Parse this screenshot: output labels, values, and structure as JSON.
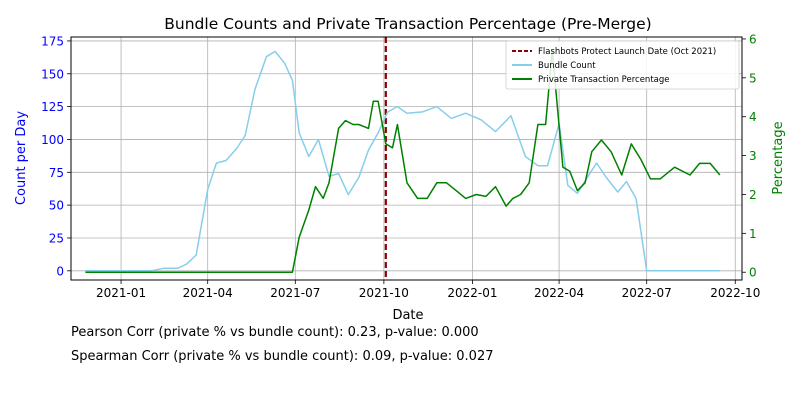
{
  "chart_data": {
    "type": "line",
    "title": "Bundle Counts and Private Transaction Percentage (Pre-Merge)",
    "xlabel": "Date",
    "ylabel_left": "Count per Day",
    "ylabel_right": "Percentage",
    "x_ticks": [
      "2021-01",
      "2021-04",
      "2021-07",
      "2021-10",
      "2022-01",
      "2022-04",
      "2022-07",
      "2022-10"
    ],
    "xlim": [
      "2020-11-10",
      "2022-10-08"
    ],
    "ylim_left": [
      -7,
      178
    ],
    "yticks_left": [
      0,
      25,
      50,
      75,
      100,
      125,
      150,
      175
    ],
    "ylim_right": [
      -0.2,
      6.05
    ],
    "yticks_right": [
      0,
      1,
      2,
      3,
      4,
      5,
      6
    ],
    "grid": true,
    "legend_position": "top-right",
    "vline": {
      "date": "2021-10-03",
      "label": "Flashbots Protect Launch Date (Oct 2021)",
      "color": "#8b0000"
    },
    "series": [
      {
        "name": "Bundle Count",
        "axis": "left",
        "color": "#87ceeb",
        "x": [
          "2020-11-25",
          "2021-02-01",
          "2021-02-15",
          "2021-03-01",
          "2021-03-10",
          "2021-03-20",
          "2021-04-01",
          "2021-04-10",
          "2021-04-20",
          "2021-05-01",
          "2021-05-10",
          "2021-05-20",
          "2021-06-01",
          "2021-06-10",
          "2021-06-20",
          "2021-06-28",
          "2021-07-05",
          "2021-07-15",
          "2021-07-25",
          "2021-08-05",
          "2021-08-15",
          "2021-08-25",
          "2021-09-05",
          "2021-09-15",
          "2021-09-25",
          "2021-10-05",
          "2021-10-15",
          "2021-10-25",
          "2021-11-10",
          "2021-11-25",
          "2021-12-10",
          "2021-12-25",
          "2022-01-10",
          "2022-01-25",
          "2022-02-10",
          "2022-02-25",
          "2022-03-10",
          "2022-03-20",
          "2022-04-01",
          "2022-04-10",
          "2022-04-20",
          "2022-05-01",
          "2022-05-10",
          "2022-05-20",
          "2022-06-01",
          "2022-06-10",
          "2022-06-20",
          "2022-07-01",
          "2022-07-15",
          "2022-08-15",
          "2022-09-15"
        ],
        "values": [
          0,
          0,
          2,
          2,
          5,
          12,
          62,
          82,
          84,
          93,
          103,
          138,
          163,
          167,
          158,
          145,
          105,
          87,
          100,
          72,
          74,
          58,
          71,
          92,
          105,
          121,
          125,
          120,
          121,
          125,
          116,
          120,
          115,
          106,
          118,
          87,
          80,
          80,
          112,
          65,
          59,
          72,
          82,
          71,
          60,
          68,
          55,
          0,
          0,
          0,
          0
        ]
      },
      {
        "name": "Private Transaction Percentage",
        "axis": "right",
        "color": "#008000",
        "x": [
          "2020-11-25",
          "2021-06-28",
          "2021-07-05",
          "2021-07-15",
          "2021-07-22",
          "2021-07-30",
          "2021-08-05",
          "2021-08-15",
          "2021-08-22",
          "2021-08-30",
          "2021-09-05",
          "2021-09-15",
          "2021-09-20",
          "2021-09-25",
          "2021-10-03",
          "2021-10-10",
          "2021-10-15",
          "2021-10-25",
          "2021-11-05",
          "2021-11-15",
          "2021-11-25",
          "2021-12-05",
          "2021-12-15",
          "2021-12-25",
          "2022-01-05",
          "2022-01-15",
          "2022-01-25",
          "2022-02-05",
          "2022-02-12",
          "2022-02-20",
          "2022-03-01",
          "2022-03-10",
          "2022-03-18",
          "2022-03-25",
          "2022-03-30",
          "2022-04-05",
          "2022-04-12",
          "2022-04-20",
          "2022-04-28",
          "2022-05-05",
          "2022-05-15",
          "2022-05-25",
          "2022-06-05",
          "2022-06-15",
          "2022-06-25",
          "2022-07-05",
          "2022-07-15",
          "2022-07-30",
          "2022-08-15",
          "2022-08-25",
          "2022-09-05",
          "2022-09-15"
        ],
        "values": [
          0,
          0,
          0.9,
          1.6,
          2.2,
          1.9,
          2.3,
          3.7,
          3.9,
          3.8,
          3.8,
          3.7,
          4.4,
          4.4,
          3.3,
          3.2,
          3.8,
          2.3,
          1.9,
          1.9,
          2.3,
          2.3,
          2.1,
          1.9,
          2.0,
          1.95,
          2.2,
          1.7,
          1.9,
          2.0,
          2.3,
          3.8,
          3.8,
          5.7,
          4.3,
          2.7,
          2.6,
          2.1,
          2.3,
          3.1,
          3.4,
          3.1,
          2.5,
          3.3,
          2.9,
          2.4,
          2.4,
          2.7,
          2.5,
          2.8,
          2.8,
          2.5
        ]
      }
    ]
  },
  "stats": {
    "pearson": "Pearson Corr (private % vs bundle count): 0.23, p-value: 0.000",
    "spearman": "Spearman Corr (private % vs bundle count): 0.09, p-value: 0.027"
  }
}
